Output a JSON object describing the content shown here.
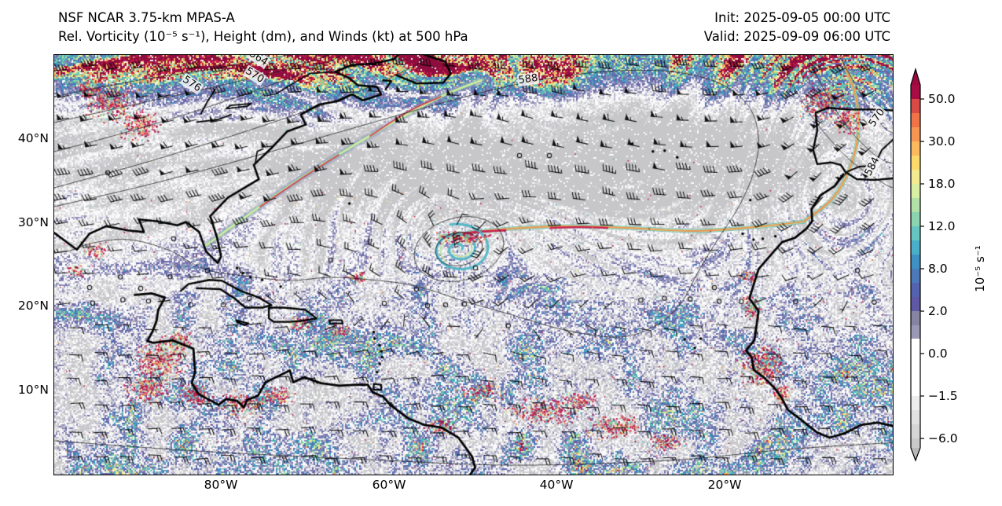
{
  "header": {
    "model_line": "NSF NCAR 3.75-km MPAS-A",
    "field_line": "Rel. Vorticity (10⁻⁵ s⁻¹), Height (dm), and Winds (kt) at 500 hPa",
    "init_time": "Init: 2025-09-05 00:00 UTC",
    "valid_time": "Valid: 2025-09-09 06:00 UTC"
  },
  "axes": {
    "x_tick_labels": [
      "80°W",
      "60°W",
      "40°W",
      "20°W"
    ],
    "y_tick_labels": [
      "40°N",
      "30°N",
      "20°N",
      "10°N"
    ]
  },
  "map": {
    "contour_labels": [
      {
        "text": "564"
      },
      {
        "text": "570"
      },
      {
        "text": "576"
      },
      {
        "text": "588"
      },
      {
        "text": "570"
      },
      {
        "text": "584"
      }
    ]
  },
  "colorbar": {
    "unit_label": "10⁻⁵ s⁻¹",
    "tick_labels": [
      "50.0",
      "30.0",
      "18.0",
      "12.0",
      "8.0",
      "2.0",
      "0.0",
      "−1.5",
      "−6.0"
    ],
    "top_arrow_color": "#9d0a40",
    "bottom_arrow_color": "#b9b9b9",
    "segments": [
      {
        "h": 18,
        "color": "#a90c45"
      },
      {
        "h": 18,
        "color": "#d94a47"
      },
      {
        "h": 18,
        "color": "#ef7347"
      },
      {
        "h": 18,
        "color": "#f79552"
      },
      {
        "h": 18,
        "color": "#fcb95d"
      },
      {
        "h": 18,
        "color": "#fbd96b"
      },
      {
        "h": 18,
        "color": "#f4ea8f"
      },
      {
        "h": 18,
        "color": "#d9efa2"
      },
      {
        "h": 18,
        "color": "#b2e1a7"
      },
      {
        "h": 18,
        "color": "#8bd4b0"
      },
      {
        "h": 18,
        "color": "#65c5c0"
      },
      {
        "h": 18,
        "color": "#4aafc8"
      },
      {
        "h": 18,
        "color": "#3e92c3"
      },
      {
        "h": 18,
        "color": "#4b79ba"
      },
      {
        "h": 18,
        "color": "#5463af"
      },
      {
        "h": 18,
        "color": "#5f58a5"
      },
      {
        "h": 18,
        "color": "#8783a3"
      },
      {
        "h": 17,
        "color": "#9b98b5"
      },
      {
        "h": 73,
        "color": "#ffffff"
      },
      {
        "h": 18,
        "color": "#ededed"
      },
      {
        "h": 18,
        "color": "#e1e1e1"
      },
      {
        "h": 18,
        "color": "#d5d5d5"
      },
      {
        "h": 12,
        "color": "#c9c9c9"
      }
    ]
  },
  "field_palette": [
    {
      "v": -0.34,
      "color": "#c7c7ca"
    },
    {
      "v": -0.2,
      "color": "#d6d6d9"
    },
    {
      "v": -0.08,
      "color": "#e7e7e9"
    },
    {
      "v": 0.1,
      "color": "#fafafb"
    },
    {
      "v": 0.2,
      "color": "#bcbad1"
    },
    {
      "v": 0.32,
      "color": "#908db6"
    },
    {
      "v": 0.42,
      "color": "#6c69aa"
    },
    {
      "v": 0.5,
      "color": "#4b75b6"
    },
    {
      "v": 0.57,
      "color": "#3f9fc4"
    },
    {
      "v": 0.63,
      "color": "#53bdb3"
    },
    {
      "v": 0.69,
      "color": "#8fd3a6"
    },
    {
      "v": 0.75,
      "color": "#cdeb9e"
    },
    {
      "v": 0.81,
      "color": "#f2e88d"
    },
    {
      "v": 0.875,
      "color": "#f0a156"
    },
    {
      "v": 0.95,
      "color": "#c81e4b"
    },
    {
      "v": 9.0,
      "color": "#8f0d3e"
    }
  ],
  "accents": {
    "barb_color": "#000000",
    "coast_color": "#000000",
    "contour_color": "#101010",
    "background": "#ffffff"
  }
}
